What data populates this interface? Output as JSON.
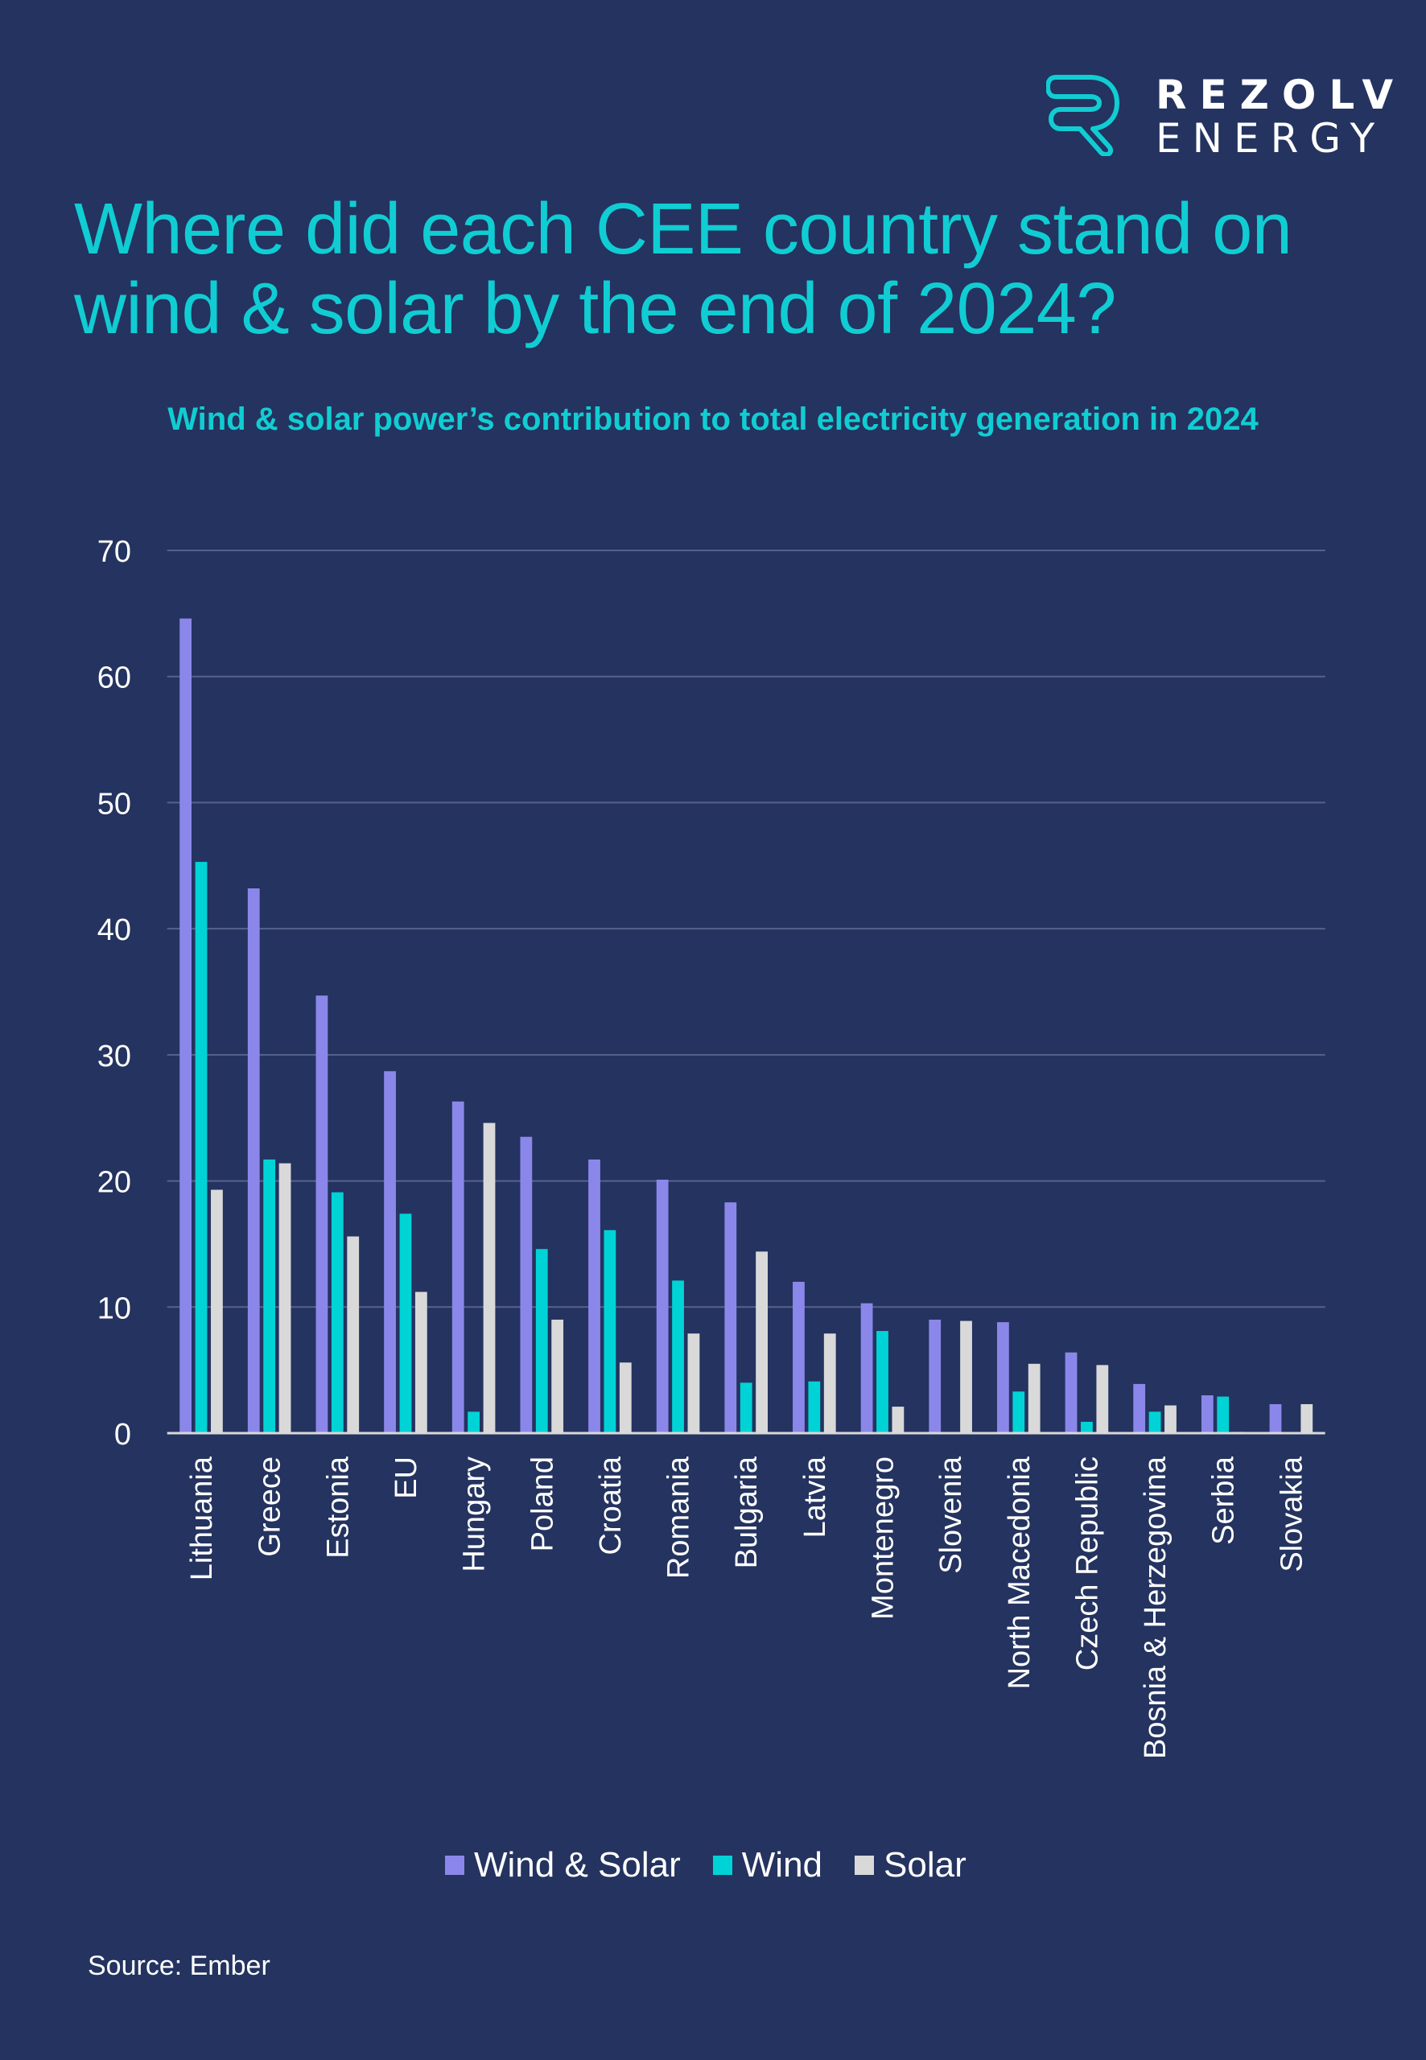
{
  "logo": {
    "line1": "REZOLV",
    "line2": "ENERGY",
    "icon": "r-outline-logo-icon"
  },
  "title": "Where did each CEE country stand on wind & solar by the end of 2024?",
  "colors": {
    "background": "#24335f",
    "accent": "#10cdd3",
    "wind_and_solar": "#8b87ea",
    "wind": "#00d3d6",
    "solar": "#d9d9d9",
    "gridline": "#56628a"
  },
  "legend": [
    {
      "label": "Wind & Solar",
      "color": "#8b87ea"
    },
    {
      "label": "Wind",
      "color": "#00d3d6"
    },
    {
      "label": "Solar",
      "color": "#d9d9d9"
    }
  ],
  "source": "Source: Ember",
  "chart_data": {
    "type": "bar",
    "title": "Wind & solar power’s contribution to total electricity generation in 2024",
    "xlabel": "",
    "ylabel": "",
    "ylim": [
      0,
      70
    ],
    "yticks": [
      0,
      10,
      20,
      30,
      40,
      50,
      60,
      70
    ],
    "grid": true,
    "legend_position": "bottom",
    "categories": [
      "Lithuania",
      "Greece",
      "Estonia",
      "EU",
      "Hungary",
      "Poland",
      "Croatia",
      "Romania",
      "Bulgaria",
      "Latvia",
      "Montenegro",
      "Slovenia",
      "North Macedonia",
      "Czech Republic",
      "Bosnia & Herzegovina",
      "Serbia",
      "Slovakia"
    ],
    "series": [
      {
        "name": "Wind & Solar",
        "color": "#8b87ea",
        "values": [
          64.6,
          43.2,
          34.7,
          28.7,
          26.3,
          23.5,
          21.7,
          20.1,
          18.3,
          12.0,
          10.3,
          9.0,
          8.8,
          6.4,
          3.9,
          3.0,
          2.3
        ]
      },
      {
        "name": "Wind",
        "color": "#00d3d6",
        "values": [
          45.3,
          21.7,
          19.1,
          17.4,
          1.7,
          14.6,
          16.1,
          12.1,
          4.0,
          4.1,
          8.1,
          0.0,
          3.3,
          0.9,
          1.7,
          2.9,
          0.0
        ]
      },
      {
        "name": "Solar",
        "color": "#d9d9d9",
        "values": [
          19.3,
          21.4,
          15.6,
          11.2,
          24.6,
          9.0,
          5.6,
          7.9,
          14.4,
          7.9,
          2.1,
          8.9,
          5.5,
          5.4,
          2.2,
          0.1,
          2.3
        ]
      }
    ]
  }
}
